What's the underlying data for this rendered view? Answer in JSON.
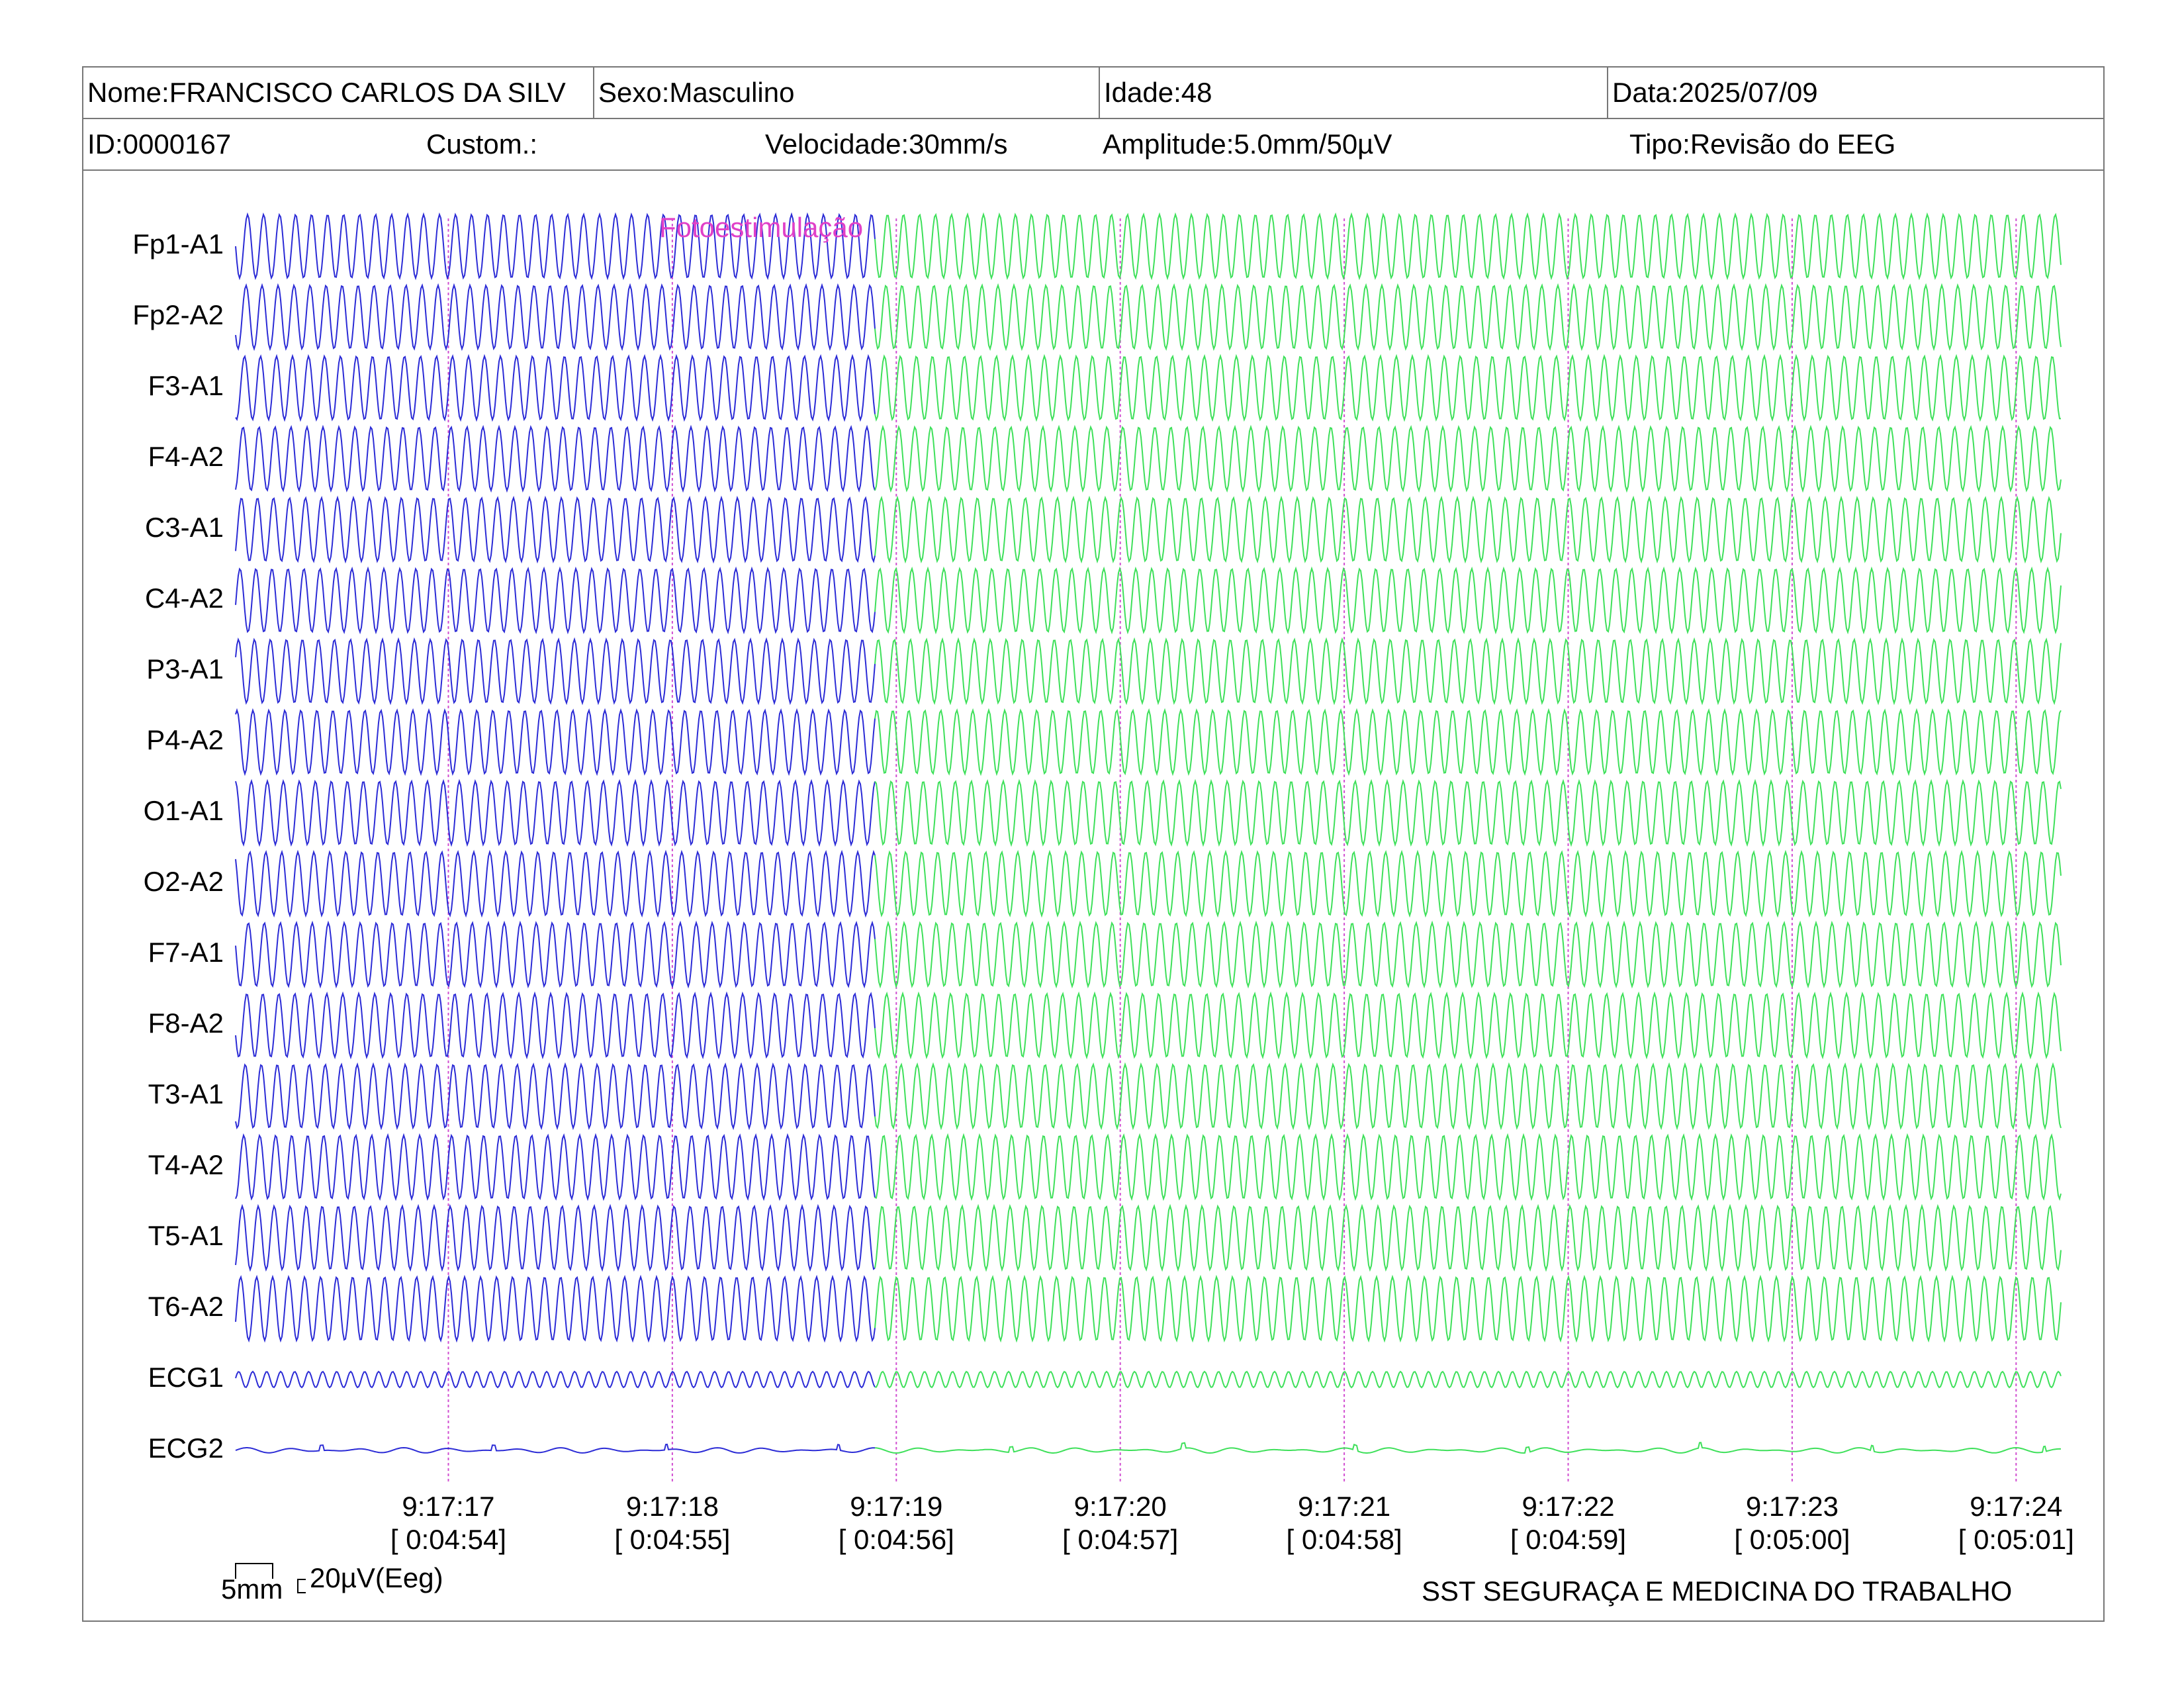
{
  "header": {
    "name": "Nome:FRANCISCO CARLOS DA SILV",
    "sex": "Sexo:Masculino",
    "age": "Idade:48",
    "date": "Data:2025/07/09",
    "id": "ID:0000167",
    "custom": "Custom.:",
    "speed": "Velocidade:30mm/s",
    "amplitude": "Amplitude:5.0mm/50µV",
    "type": "Tipo:Revisão do EEG"
  },
  "event": {
    "label": "Fotoestimulação",
    "color": "#e040c8"
  },
  "colors": {
    "before_event": "#2b2bd6",
    "after_event": "#3ee05a",
    "marker": "#d14fd1"
  },
  "footer": {
    "scale_time": "5mm",
    "scale_amp": "20µV(Eeg)",
    "company": "SST SEGURAÇA E MEDICINA DO TRABALHO"
  },
  "chart_data": {
    "type": "line",
    "channels": [
      "Fp1-A1",
      "Fp2-A2",
      "F3-A1",
      "F4-A2",
      "C3-A1",
      "C4-A2",
      "P3-A1",
      "P4-A2",
      "O1-A1",
      "O2-A2",
      "F7-A1",
      "F8-A2",
      "T3-A1",
      "T4-A2",
      "T5-A1",
      "T6-A2",
      "ECG1",
      "ECG2"
    ],
    "time_marks": [
      {
        "clock": "9:17:17",
        "elapsed": "[ 0:04:54]"
      },
      {
        "clock": "9:17:18",
        "elapsed": "[ 0:04:55]"
      },
      {
        "clock": "9:17:19",
        "elapsed": "[ 0:04:56]"
      },
      {
        "clock": "9:17:20",
        "elapsed": "[ 0:04:57]"
      },
      {
        "clock": "9:17:21",
        "elapsed": "[ 0:04:58]"
      },
      {
        "clock": "9:17:22",
        "elapsed": "[ 0:04:59]"
      },
      {
        "clock": "9:17:23",
        "elapsed": "[ 0:05:00]"
      },
      {
        "clock": "9:17:24",
        "elapsed": "[ 0:05:01]"
      }
    ],
    "event_time_s": 2.86,
    "visible_seconds": 8.15,
    "eeg_frequency_hz": 14,
    "ecg1_frequency_hz": 16
  }
}
